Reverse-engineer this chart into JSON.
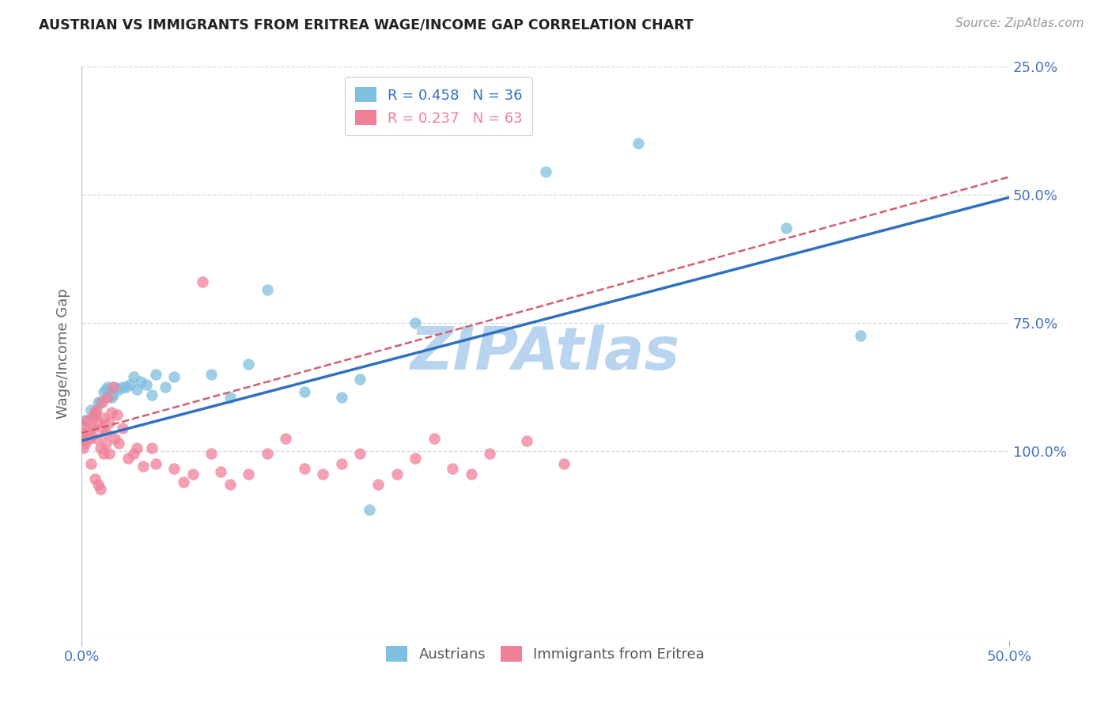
{
  "title": "AUSTRIAN VS IMMIGRANTS FROM ERITREA WAGE/INCOME GAP CORRELATION CHART",
  "source": "Source: ZipAtlas.com",
  "ylabel_label": "Wage/Income Gap",
  "x_tick_labels": [
    "0.0%",
    "50.0%"
  ],
  "y_tick_labels": [
    "100.0%",
    "75.0%",
    "50.0%",
    "25.0%"
  ],
  "x_lim": [
    0.0,
    0.5
  ],
  "y_lim": [
    -0.12,
    1.0
  ],
  "y_ticks": [
    0.25,
    0.5,
    0.75,
    1.0
  ],
  "x_ticks": [
    0.0,
    0.5
  ],
  "austrians_R": 0.458,
  "austrians_N": 36,
  "eritreans_R": 0.237,
  "eritreans_N": 63,
  "austrians_color": "#7fbfdf",
  "eritreans_color": "#f08098",
  "trendline_austrians_color": "#3070c0",
  "trendline_eritreans_color": "#d06070",
  "watermark_color": "#b8d4ee",
  "background_color": "#ffffff",
  "grid_color": "#d0d8e8",
  "right_tick_color": "#4472c4",
  "austrians_x": [
    0.002,
    0.005,
    0.007,
    0.009,
    0.01,
    0.012,
    0.013,
    0.014,
    0.016,
    0.017,
    0.018,
    0.02,
    0.022,
    0.024,
    0.026,
    0.028,
    0.03,
    0.032,
    0.035,
    0.038,
    0.04,
    0.045,
    0.05,
    0.07,
    0.08,
    0.09,
    0.1,
    0.12,
    0.14,
    0.15,
    0.155,
    0.18,
    0.25,
    0.3,
    0.38,
    0.42
  ],
  "austrians_y": [
    0.31,
    0.33,
    0.32,
    0.345,
    0.345,
    0.365,
    0.37,
    0.375,
    0.355,
    0.36,
    0.375,
    0.37,
    0.375,
    0.375,
    0.38,
    0.395,
    0.37,
    0.385,
    0.38,
    0.36,
    0.4,
    0.375,
    0.395,
    0.4,
    0.355,
    0.42,
    0.565,
    0.365,
    0.355,
    0.39,
    0.135,
    0.5,
    0.795,
    0.85,
    0.685,
    0.475
  ],
  "eritreans_x": [
    0.0,
    0.0,
    0.001,
    0.001,
    0.002,
    0.003,
    0.004,
    0.004,
    0.005,
    0.006,
    0.006,
    0.007,
    0.007,
    0.008,
    0.008,
    0.009,
    0.009,
    0.01,
    0.01,
    0.011,
    0.011,
    0.012,
    0.012,
    0.013,
    0.013,
    0.014,
    0.015,
    0.015,
    0.016,
    0.017,
    0.018,
    0.019,
    0.02,
    0.022,
    0.025,
    0.028,
    0.03,
    0.033,
    0.038,
    0.04,
    0.05,
    0.055,
    0.06,
    0.065,
    0.07,
    0.075,
    0.08,
    0.09,
    0.1,
    0.11,
    0.12,
    0.13,
    0.14,
    0.15,
    0.16,
    0.17,
    0.18,
    0.19,
    0.2,
    0.21,
    0.22,
    0.24,
    0.26
  ],
  "eritreans_y": [
    0.3,
    0.285,
    0.275,
    0.255,
    0.265,
    0.31,
    0.275,
    0.29,
    0.225,
    0.315,
    0.295,
    0.195,
    0.325,
    0.33,
    0.275,
    0.185,
    0.305,
    0.175,
    0.255,
    0.295,
    0.345,
    0.245,
    0.315,
    0.285,
    0.265,
    0.355,
    0.305,
    0.245,
    0.325,
    0.375,
    0.275,
    0.32,
    0.265,
    0.295,
    0.235,
    0.245,
    0.255,
    0.22,
    0.255,
    0.225,
    0.215,
    0.19,
    0.205,
    0.58,
    0.245,
    0.21,
    0.185,
    0.205,
    0.245,
    0.275,
    0.215,
    0.205,
    0.225,
    0.245,
    0.185,
    0.205,
    0.235,
    0.275,
    0.215,
    0.205,
    0.245,
    0.27,
    0.225
  ],
  "trend_a_x0": 0.0,
  "trend_a_y0": 0.27,
  "trend_a_x1": 0.5,
  "trend_a_y1": 0.745,
  "trend_e_x0": 0.0,
  "trend_e_y0": 0.285,
  "trend_e_x1": 0.5,
  "trend_e_y1": 0.785
}
